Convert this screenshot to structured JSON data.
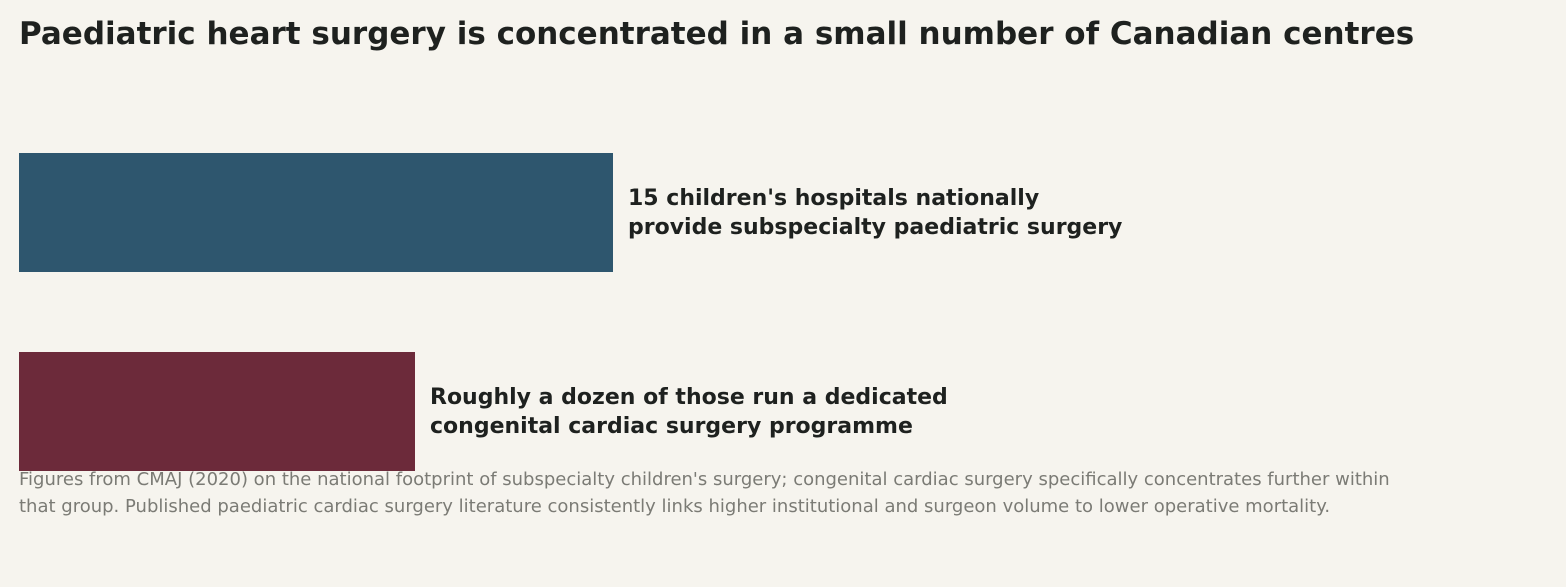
{
  "title": "Paediatric heart surgery is concentrated in a small number of Canadian centres",
  "chart_data": {
    "type": "bar",
    "orientation": "horizontal",
    "categories": [
      "15 children's hospitals nationally provide subspecialty paediatric surgery",
      "Roughly a dozen of those run a dedicated congenital cardiac surgery programme"
    ],
    "values": [
      15,
      10
    ],
    "labels": [
      {
        "line1": "15 children's hospitals nationally",
        "line2": "provide subspecialty paediatric surgery"
      },
      {
        "line1": "Roughly a dozen of those run a dedicated",
        "line2": "congenital cardiac surgery programme"
      }
    ],
    "colors": [
      "#2e566e",
      "#6c2a3a"
    ],
    "axes_visible": false,
    "grid": false
  },
  "caption": {
    "line1": "Figures from CMAJ (2020) on the national footprint of subspecialty children's surgery; congenital cardiac surgery specifically concentrates further within",
    "line2": "that group. Published paediatric cardiac surgery literature consistently links higher institutional and surgeon volume to lower operative mortality."
  }
}
